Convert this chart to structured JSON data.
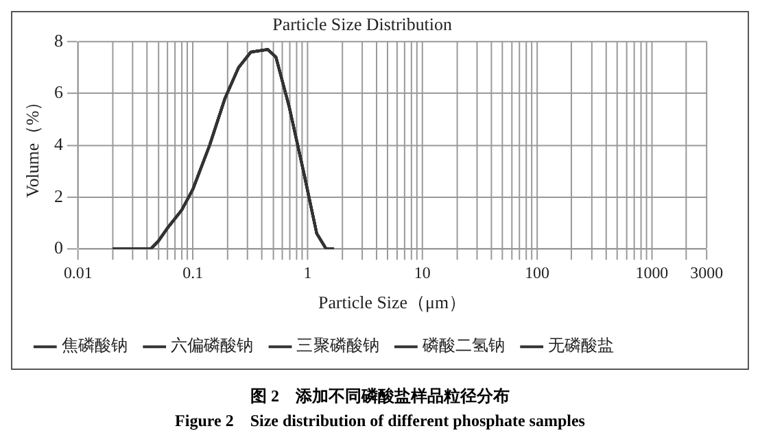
{
  "chart_data": {
    "type": "line",
    "title": "Particle Size Distribution",
    "xlabel": "Particle Size（μm）",
    "ylabel": "Volume（%）",
    "x": [
      0.02,
      0.043,
      0.05,
      0.06,
      0.08,
      0.1,
      0.14,
      0.19,
      0.25,
      0.32,
      0.45,
      0.53,
      0.69,
      0.92,
      1.2,
      1.45,
      1.7
    ],
    "series": [
      {
        "name": "焦磷酸钠",
        "color": "#333333",
        "values": [
          0,
          0,
          0.3,
          0.8,
          1.5,
          2.3,
          4,
          5.8,
          7,
          7.6,
          7.7,
          7.4,
          5.5,
          3,
          0.6,
          0,
          0
        ]
      },
      {
        "name": "六偏磷酸钠",
        "color": "#333333",
        "values": [
          0,
          0,
          0.3,
          0.8,
          1.5,
          2.3,
          4,
          5.8,
          7,
          7.6,
          7.7,
          7.4,
          5.5,
          3,
          0.6,
          0,
          0
        ]
      },
      {
        "name": "三聚磷酸钠",
        "color": "#333333",
        "values": [
          0,
          0,
          0.3,
          0.8,
          1.5,
          2.3,
          4,
          5.8,
          7,
          7.6,
          7.7,
          7.4,
          5.5,
          3,
          0.6,
          0,
          0
        ]
      },
      {
        "name": "磷酸二氢钠",
        "color": "#333333",
        "values": [
          0,
          0,
          0.3,
          0.8,
          1.5,
          2.3,
          4,
          5.8,
          7,
          7.6,
          7.7,
          7.4,
          5.5,
          3,
          0.6,
          0,
          0
        ]
      },
      {
        "name": "无磷酸盐",
        "color": "#333333",
        "values": [
          0,
          0,
          0.3,
          0.8,
          1.5,
          2.3,
          4,
          5.8,
          7,
          7.6,
          7.7,
          7.4,
          5.5,
          3,
          0.6,
          0,
          0
        ]
      }
    ],
    "log": "x",
    "xlim": [
      0.01,
      3000
    ],
    "xticks": [
      0.01,
      {
        "value": 0.02,
        "label": null
      },
      {
        "value": 0.03,
        "label": null
      },
      {
        "value": 0.04,
        "label": null
      },
      {
        "value": 0.05,
        "label": null
      },
      {
        "value": 0.06,
        "label": null
      },
      {
        "value": 0.07,
        "label": null
      },
      {
        "value": 0.08,
        "label": null
      },
      {
        "value": 0.09,
        "label": null
      },
      0.1,
      {
        "value": 0.2,
        "label": null
      },
      {
        "value": 0.3,
        "label": null
      },
      {
        "value": 0.4,
        "label": null
      },
      {
        "value": 0.5,
        "label": null
      },
      {
        "value": 0.6,
        "label": null
      },
      {
        "value": 0.7,
        "label": null
      },
      {
        "value": 0.8,
        "label": null
      },
      {
        "value": 0.9,
        "label": null
      },
      1,
      {
        "value": 2,
        "label": null
      },
      {
        "value": 3,
        "label": null
      },
      {
        "value": 4,
        "label": null
      },
      {
        "value": 5,
        "label": null
      },
      {
        "value": 6,
        "label": null
      },
      {
        "value": 7,
        "label": null
      },
      {
        "value": 8,
        "label": null
      },
      {
        "value": 9,
        "label": null
      },
      10,
      {
        "value": 20,
        "label": null
      },
      {
        "value": 30,
        "label": null
      },
      {
        "value": 40,
        "label": null
      },
      {
        "value": 50,
        "label": null
      },
      {
        "value": 60,
        "label": null
      },
      {
        "value": 70,
        "label": null
      },
      {
        "value": 80,
        "label": null
      },
      {
        "value": 90,
        "label": null
      },
      100,
      {
        "value": 200,
        "label": null
      },
      {
        "value": 300,
        "label": null
      },
      {
        "value": 400,
        "label": null
      },
      {
        "value": 500,
        "label": null
      },
      {
        "value": 600,
        "label": null
      },
      {
        "value": 700,
        "label": null
      },
      {
        "value": 800,
        "label": null
      },
      {
        "value": 900,
        "label": null
      },
      1000,
      {
        "value": 2000,
        "label": null
      },
      3000
    ],
    "ylim": [
      0,
      8
    ],
    "yticks": [
      0,
      2,
      4,
      6,
      8
    ],
    "grid": true,
    "legend": "bottom",
    "marker": "none",
    "line_style": "solid",
    "annotations": [
      "图 2　添加不同磷酸盐样品粒径分布",
      "Figure 2　Size distribution of different phosphate samples"
    ]
  }
}
